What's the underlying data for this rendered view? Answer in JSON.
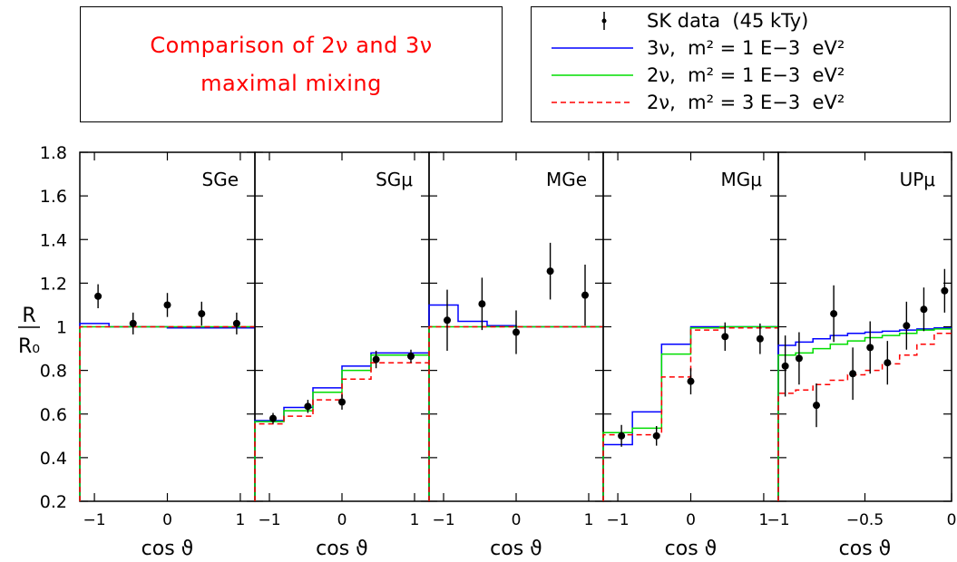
{
  "title": {
    "line1": "Comparison of 2ν and 3ν",
    "line2": "maximal  mixing"
  },
  "legend": {
    "items": [
      {
        "label": "SK data  (45 kTy)",
        "style": "points",
        "color": "#000000"
      },
      {
        "label": "3ν,  m² = 1 E−3  eV²",
        "style": "solid",
        "color": "#0000ff"
      },
      {
        "label": "2ν,  m² = 1 E−3  eV²",
        "style": "solid",
        "color": "#00dd00"
      },
      {
        "label": "2ν,  m² = 3 E−3  eV²",
        "style": "dashed",
        "color": "#ff0000"
      }
    ]
  },
  "ylabel": {
    "numerator": "R",
    "denominator": "R₀"
  },
  "chart_data": [
    {
      "type": "step-line",
      "panel": "SGe",
      "xlabel": "cos ϑ",
      "xlim": [
        -1.2,
        1.2
      ],
      "xticks": [
        -1,
        0,
        1
      ],
      "xtick_labels": [
        "−1",
        "0",
        "1"
      ],
      "ylim": [
        0.2,
        1.8
      ],
      "yticks": [
        0.2,
        0.4,
        0.6,
        0.8,
        1.0,
        1.2,
        1.4,
        1.6,
        1.8
      ],
      "ytick_labels": [
        "0.2",
        "0.4",
        "0.6",
        "0.8",
        "1",
        "1.2",
        "1.4",
        "1.6",
        "1.8"
      ],
      "bin_edges": [
        -1.2,
        -0.8,
        -0.4,
        0.0,
        0.4,
        0.8,
        1.2
      ],
      "series": [
        {
          "name": "3ν,  m² = 1 E−3  eV²",
          "color": "#0000ff",
          "dash": false,
          "values": [
            1.015,
            1.0,
            1.0,
            0.995,
            0.995,
            0.995
          ]
        },
        {
          "name": "2ν,  m² = 1 E−3  eV²",
          "color": "#00dd00",
          "dash": false,
          "values": [
            1.0,
            1.0,
            1.0,
            1.0,
            1.0,
            1.0
          ]
        },
        {
          "name": "2ν,  m² = 3 E−3  eV²",
          "color": "#ff0000",
          "dash": true,
          "values": [
            1.0,
            1.0,
            1.0,
            1.0,
            1.0,
            1.0
          ]
        }
      ],
      "points": {
        "x": [
          -0.95,
          -0.47,
          0.0,
          0.47,
          0.95
        ],
        "y": [
          1.14,
          1.015,
          1.1,
          1.06,
          1.015
        ],
        "err": [
          0.055,
          0.05,
          0.055,
          0.055,
          0.05
        ]
      }
    },
    {
      "type": "step-line",
      "panel": "SGμ",
      "xlabel": "cos ϑ",
      "xlim": [
        -1.2,
        1.2
      ],
      "xticks": [
        -1,
        0,
        1
      ],
      "xtick_labels": [
        "−1",
        "0",
        "1"
      ],
      "ylim": [
        0.2,
        1.8
      ],
      "bin_edges": [
        -1.2,
        -0.8,
        -0.4,
        0.0,
        0.4,
        0.8,
        1.2
      ],
      "series": [
        {
          "name": "3ν,  m² = 1 E−3  eV²",
          "color": "#0000ff",
          "dash": false,
          "values": [
            0.57,
            0.63,
            0.72,
            0.82,
            0.88,
            0.88
          ]
        },
        {
          "name": "2ν,  m² = 1 E−3  eV²",
          "color": "#00dd00",
          "dash": false,
          "values": [
            0.565,
            0.615,
            0.7,
            0.8,
            0.87,
            0.87
          ]
        },
        {
          "name": "2ν,  m² = 3 E−3  eV²",
          "color": "#ff0000",
          "dash": true,
          "values": [
            0.555,
            0.59,
            0.665,
            0.76,
            0.835,
            0.835
          ]
        }
      ],
      "points": {
        "x": [
          -0.95,
          -0.47,
          0.0,
          0.47,
          0.95
        ],
        "y": [
          0.58,
          0.635,
          0.655,
          0.85,
          0.865
        ],
        "err": [
          0.025,
          0.03,
          0.035,
          0.04,
          0.03
        ]
      }
    },
    {
      "type": "step-line",
      "panel": "MGe",
      "xlabel": "cos ϑ",
      "xlim": [
        -1.2,
        1.2
      ],
      "xticks": [
        -1,
        0,
        1
      ],
      "xtick_labels": [
        "−1",
        "0",
        "1"
      ],
      "ylim": [
        0.2,
        1.8
      ],
      "bin_edges": [
        -1.2,
        -0.8,
        -0.4,
        0.0,
        0.4,
        0.8,
        1.2
      ],
      "series": [
        {
          "name": "3ν,  m² = 1 E−3  eV²",
          "color": "#0000ff",
          "dash": false,
          "values": [
            1.1,
            1.025,
            1.005,
            1.0,
            1.0,
            1.0
          ]
        },
        {
          "name": "2ν,  m² = 1 E−3  eV²",
          "color": "#00dd00",
          "dash": false,
          "values": [
            1.0,
            1.0,
            1.0,
            1.0,
            1.0,
            1.0
          ]
        },
        {
          "name": "2ν,  m² = 3 E−3  eV²",
          "color": "#ff0000",
          "dash": true,
          "values": [
            1.0,
            1.0,
            1.0,
            1.0,
            1.0,
            1.0
          ]
        }
      ],
      "points": {
        "x": [
          -0.95,
          -0.47,
          0.0,
          0.47,
          0.95
        ],
        "y": [
          1.03,
          1.105,
          0.975,
          1.255,
          1.145
        ],
        "err": [
          0.14,
          0.12,
          0.1,
          0.13,
          0.14
        ]
      }
    },
    {
      "type": "step-line",
      "panel": "MGμ",
      "xlabel": "cos ϑ",
      "xlim": [
        -1.2,
        1.2
      ],
      "xticks": [
        -1,
        0,
        1
      ],
      "xtick_labels": [
        "−1",
        "0",
        "1"
      ],
      "ylim": [
        0.2,
        1.8
      ],
      "bin_edges": [
        -1.2,
        -0.8,
        -0.4,
        0.0,
        0.4,
        0.8,
        1.2
      ],
      "series": [
        {
          "name": "3ν,  m² = 1 E−3  eV²",
          "color": "#0000ff",
          "dash": false,
          "values": [
            0.46,
            0.61,
            0.92,
            1.0,
            1.0,
            1.0
          ]
        },
        {
          "name": "2ν,  m² = 1 E−3  eV²",
          "color": "#00dd00",
          "dash": false,
          "values": [
            0.515,
            0.535,
            0.875,
            0.995,
            1.0,
            1.0
          ]
        },
        {
          "name": "2ν,  m² = 3 E−3  eV²",
          "color": "#ff0000",
          "dash": true,
          "values": [
            0.505,
            0.505,
            0.77,
            0.985,
            0.995,
            0.995
          ]
        }
      ],
      "points": {
        "x": [
          -0.95,
          -0.47,
          0.0,
          0.47,
          0.95
        ],
        "y": [
          0.5,
          0.5,
          0.75,
          0.955,
          0.945
        ],
        "err": [
          0.05,
          0.045,
          0.06,
          0.065,
          0.07
        ]
      }
    },
    {
      "type": "step-line",
      "panel": "UPμ",
      "xlabel": "cos ϑ",
      "xlim": [
        -1.0,
        0.0
      ],
      "xticks": [
        -1,
        -0.5,
        0
      ],
      "xtick_labels": [
        "−1",
        "−0.5",
        "0"
      ],
      "ylim": [
        0.2,
        1.8
      ],
      "bin_edges": [
        -1.0,
        -0.9,
        -0.8,
        -0.7,
        -0.6,
        -0.5,
        -0.4,
        -0.3,
        -0.2,
        -0.1,
        0.0
      ],
      "series": [
        {
          "name": "3ν,  m² = 1 E−3  eV²",
          "color": "#0000ff",
          "dash": false,
          "values": [
            0.915,
            0.93,
            0.945,
            0.96,
            0.97,
            0.975,
            0.98,
            0.985,
            0.99,
            0.995
          ]
        },
        {
          "name": "2ν,  m² = 1 E−3  eV²",
          "color": "#00dd00",
          "dash": false,
          "values": [
            0.87,
            0.88,
            0.9,
            0.92,
            0.935,
            0.95,
            0.96,
            0.97,
            0.985,
            0.99
          ]
        },
        {
          "name": "2ν,  m² = 3 E−3  eV²",
          "color": "#ff0000",
          "dash": true,
          "values": [
            0.695,
            0.71,
            0.735,
            0.755,
            0.78,
            0.8,
            0.83,
            0.87,
            0.92,
            0.97
          ]
        }
      ],
      "points": {
        "x": [
          -0.96,
          -0.88,
          -0.78,
          -0.68,
          -0.57,
          -0.47,
          -0.37,
          -0.26,
          -0.16,
          -0.04
        ],
        "y": [
          0.82,
          0.855,
          0.64,
          1.06,
          0.785,
          0.905,
          0.835,
          1.005,
          1.08,
          1.165
        ],
        "err": [
          0.14,
          0.12,
          0.1,
          0.13,
          0.12,
          0.12,
          0.1,
          0.11,
          0.1,
          0.1
        ]
      }
    }
  ]
}
